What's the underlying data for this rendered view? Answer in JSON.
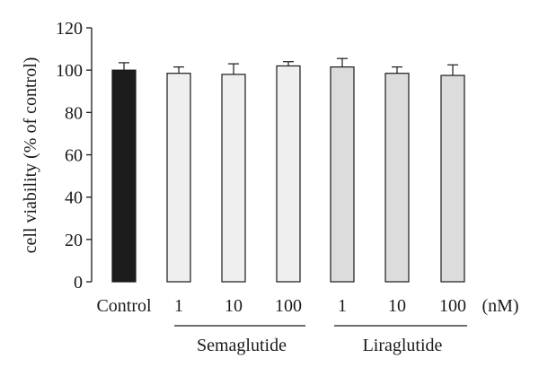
{
  "chart_data": {
    "type": "bar",
    "ylabel": "cell viability (% of control)",
    "ylim": [
      0,
      120
    ],
    "yticks": [
      0,
      20,
      40,
      60,
      80,
      100,
      120
    ],
    "unit_label": "(nM)",
    "categories": [
      "Control",
      "1",
      "10",
      "100",
      "1",
      "10",
      "100"
    ],
    "values": [
      100,
      98.5,
      98,
      102,
      101.5,
      98.5,
      97.5
    ],
    "errors": [
      3.5,
      3,
      5,
      2,
      4,
      3,
      5
    ],
    "groups": [
      {
        "label": "Semaglutide",
        "indices": [
          1,
          2,
          3
        ]
      },
      {
        "label": "Liraglutide",
        "indices": [
          4,
          5,
          6
        ]
      }
    ],
    "colors": {
      "control": "#1c1c1c",
      "semaglutide": "#efefef",
      "liraglutide": "#dcdcdc",
      "stroke": "#1a1a1a"
    },
    "grid": false,
    "legend": "none"
  }
}
